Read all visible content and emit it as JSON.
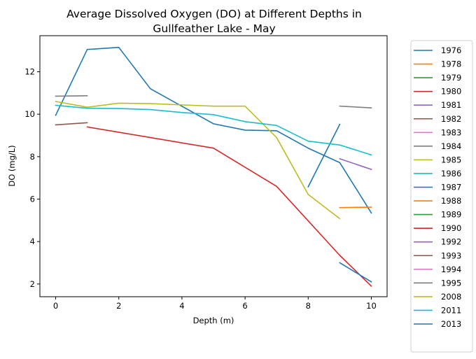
{
  "chart_data": {
    "type": "line",
    "title_line1": "Average Dissolved Oxygen (DO) at Different Depths in",
    "title_line2": "Gullfeather Lake - May",
    "xlabel": "Depth (m)",
    "ylabel": "DO (mg/L)",
    "xlim": [
      -0.5,
      10.5
    ],
    "ylim": [
      1.4,
      13.7
    ],
    "xticks": [
      0,
      2,
      4,
      6,
      8,
      10
    ],
    "yticks": [
      2,
      4,
      6,
      8,
      10,
      12
    ],
    "grid": false,
    "legend_position": "outside-right",
    "series": [
      {
        "name": "1976",
        "color": "#1f77b4",
        "x": [
          0,
          1,
          2,
          3,
          5,
          6,
          7,
          8,
          9,
          10
        ],
        "y": [
          9.95,
          13.05,
          13.15,
          11.2,
          9.55,
          9.25,
          9.22,
          8.4,
          7.72,
          5.35
        ]
      },
      {
        "name": "1978",
        "color": "#ff7f0e",
        "x": [],
        "y": []
      },
      {
        "name": "1979",
        "color": "#2ca02c",
        "x": [],
        "y": []
      },
      {
        "name": "1980",
        "color": "#d62728",
        "x": [],
        "y": []
      },
      {
        "name": "1981",
        "color": "#9467bd",
        "x": [
          9,
          10
        ],
        "y": [
          7.9,
          7.4
        ]
      },
      {
        "name": "1982",
        "color": "#8c564b",
        "x": [
          0,
          1
        ],
        "y": [
          9.5,
          9.6
        ]
      },
      {
        "name": "1983",
        "color": "#e377c2",
        "x": [],
        "y": []
      },
      {
        "name": "1984",
        "color": "#7f7f7f",
        "x": [
          0,
          1
        ],
        "y": [
          10.85,
          10.87
        ]
      },
      {
        "name": "1985",
        "color": "#bcbd22",
        "x": [],
        "y": []
      },
      {
        "name": "1986",
        "color": "#17becf",
        "x": [],
        "y": []
      },
      {
        "name": "1987",
        "color": "#1f77b4",
        "x": [
          8,
          9
        ],
        "y": [
          6.58,
          9.52
        ]
      },
      {
        "name": "1988",
        "color": "#ff7f0e",
        "x": [
          9,
          10
        ],
        "y": [
          5.6,
          5.62
        ]
      },
      {
        "name": "1989",
        "color": "#2ca02c",
        "x": [],
        "y": []
      },
      {
        "name": "1990",
        "color": "#d62728",
        "x": [
          1,
          5,
          7,
          9,
          10
        ],
        "y": [
          9.4,
          8.4,
          6.6,
          3.35,
          1.9
        ]
      },
      {
        "name": "1992",
        "color": "#9467bd",
        "x": [],
        "y": []
      },
      {
        "name": "1993",
        "color": "#8c564b",
        "x": [],
        "y": []
      },
      {
        "name": "1994",
        "color": "#e377c2",
        "x": [],
        "y": []
      },
      {
        "name": "1995",
        "color": "#7f7f7f",
        "x": [
          9,
          10
        ],
        "y": [
          10.38,
          10.3
        ]
      },
      {
        "name": "2008",
        "color": "#bcbd22",
        "x": [
          0,
          1,
          2,
          3,
          5,
          6,
          7,
          8,
          9
        ],
        "y": [
          10.6,
          10.33,
          10.52,
          10.5,
          10.38,
          10.38,
          8.9,
          6.22,
          5.08
        ]
      },
      {
        "name": "2011",
        "color": "#17becf",
        "x": [
          0,
          1,
          2,
          3,
          4,
          5,
          6,
          7,
          8,
          9,
          10
        ],
        "y": [
          10.42,
          10.28,
          10.27,
          10.22,
          10.08,
          9.98,
          9.65,
          9.47,
          8.73,
          8.55,
          8.08
        ]
      },
      {
        "name": "2013",
        "color": "#1f77b4",
        "x": [
          9,
          10
        ],
        "y": [
          3.0,
          2.1
        ]
      }
    ]
  }
}
